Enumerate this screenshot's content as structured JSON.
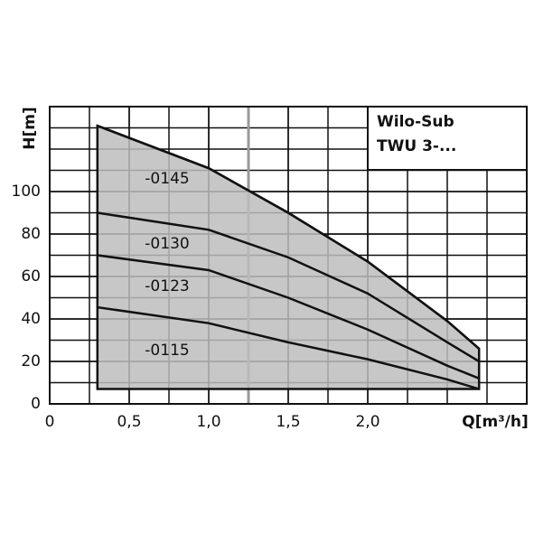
{
  "chart_data": {
    "type": "line",
    "title": "Wilo-Sub",
    "subtitle": "TWU 3-...",
    "x_label": "Q[m³/h]",
    "y_label": "H[m]",
    "x": [
      0.3,
      1.0,
      1.5,
      2.0,
      2.5,
      2.7
    ],
    "series": [
      {
        "name": "-0145",
        "color": "#111111",
        "values": [
          131,
          111,
          90,
          67,
          39,
          26
        ]
      },
      {
        "name": "-0130",
        "color": "#111111",
        "values": [
          90,
          82,
          69,
          52,
          29,
          20
        ]
      },
      {
        "name": "-0123",
        "color": "#111111",
        "values": [
          70,
          63,
          50,
          35,
          18,
          12
        ]
      },
      {
        "name": "-0115",
        "color": "#111111",
        "values": [
          45.5,
          38,
          29,
          21,
          11.5,
          7
        ]
      }
    ],
    "area_color": "#bdbdbd",
    "marker_x": 1.25,
    "xlim": [
      0,
      3.0
    ],
    "ylim": [
      0,
      140
    ],
    "xticks": [
      0,
      {
        "value": 0.5,
        "label": "0,5"
      },
      {
        "value": 1.0,
        "label": "1,0"
      },
      {
        "value": 1.5,
        "label": "1,5"
      },
      {
        "value": 2.0,
        "label": "2,0"
      }
    ],
    "yticks": [
      0,
      20,
      40,
      60,
      80,
      100
    ],
    "grid": true
  }
}
